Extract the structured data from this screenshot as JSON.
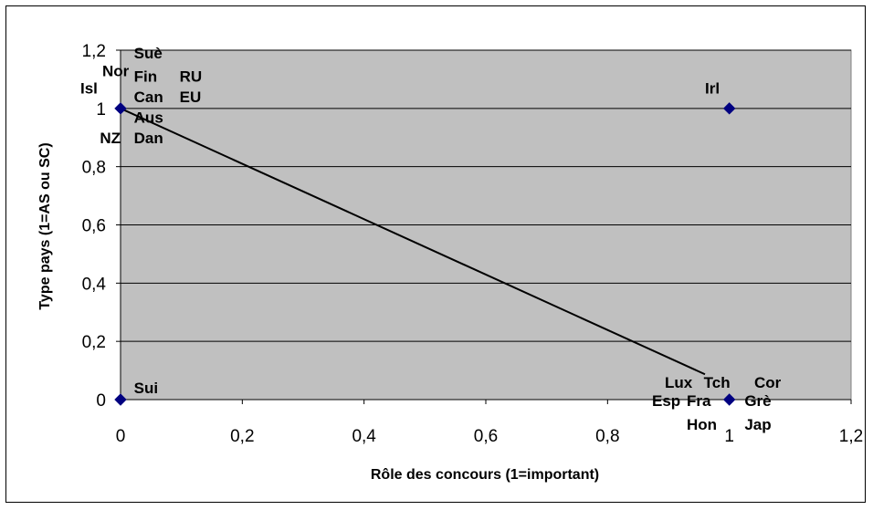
{
  "chart_data": {
    "type": "scatter",
    "xlabel": "Rôle des concours (1=important)",
    "ylabel": "Type pays (1=AS ou SC)",
    "xlim": [
      0,
      1.2
    ],
    "ylim": [
      0,
      1.2
    ],
    "x_ticks": [
      "0",
      "0,2",
      "0,4",
      "0,6",
      "0,8",
      "1",
      "1,2"
    ],
    "y_ticks": [
      "0",
      "0,2",
      "0,4",
      "0,6",
      "0,8",
      "1",
      "1,2"
    ],
    "grid": "horizontal",
    "legend": "none",
    "colors": {
      "plot_area": "#c0c0c0",
      "marker": "#000080",
      "line": "#000000",
      "grid": "#000000"
    },
    "points": [
      {
        "x": 0,
        "y": 1
      },
      {
        "x": 1,
        "y": 1
      },
      {
        "x": 0,
        "y": 0
      },
      {
        "x": 1,
        "y": 0
      }
    ],
    "trendline": {
      "x": [
        0,
        0.96
      ],
      "y": [
        1,
        0.087
      ]
    },
    "point_labels": [
      {
        "text": "Suè",
        "x": 0.022,
        "y": 1.19
      },
      {
        "text": "Nor",
        "x": -0.03,
        "y": 1.13
      },
      {
        "text": "Fin",
        "x": 0.022,
        "y": 1.11
      },
      {
        "text": "RU",
        "x": 0.097,
        "y": 1.11
      },
      {
        "text": "Isl",
        "x": -0.066,
        "y": 1.07
      },
      {
        "text": "Can",
        "x": 0.022,
        "y": 1.04
      },
      {
        "text": "EU",
        "x": 0.097,
        "y": 1.04
      },
      {
        "text": "Aus",
        "x": 0.022,
        "y": 0.97
      },
      {
        "text": "NZ",
        "x": -0.034,
        "y": 0.9
      },
      {
        "text": "Dan",
        "x": 0.022,
        "y": 0.9
      },
      {
        "text": "Irl",
        "x": 0.96,
        "y": 1.07
      },
      {
        "text": "Sui",
        "x": 0.022,
        "y": 0.04
      },
      {
        "text": "Lux",
        "x": 0.894,
        "y": 0.06
      },
      {
        "text": "Tch",
        "x": 0.958,
        "y": 0.06
      },
      {
        "text": "Cor",
        "x": 1.041,
        "y": 0.06
      },
      {
        "text": "Esp",
        "x": 0.873,
        "y": -0.003
      },
      {
        "text": "Fra",
        "x": 0.93,
        "y": -0.003
      },
      {
        "text": "Grè",
        "x": 1.025,
        "y": -0.003
      },
      {
        "text": "Hon",
        "x": 0.93,
        "y": -0.085
      },
      {
        "text": "Jap",
        "x": 1.025,
        "y": -0.085
      }
    ]
  }
}
